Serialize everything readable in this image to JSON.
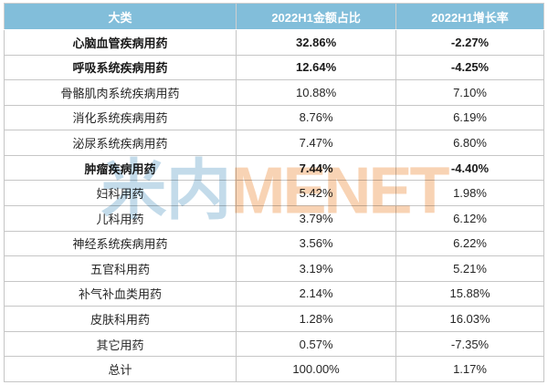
{
  "watermark": {
    "cn": "米内",
    "en": "MENET"
  },
  "table": {
    "columns": [
      "大类",
      "2022H1金额占比",
      "2022H1增长率"
    ],
    "rows": [
      {
        "category": "心脑血管疾病用药",
        "share": "32.86%",
        "growth": "-2.27%",
        "bold": true
      },
      {
        "category": "呼吸系统疾病用药",
        "share": "12.64%",
        "growth": "-4.25%",
        "bold": true
      },
      {
        "category": "骨骼肌肉系统疾病用药",
        "share": "10.88%",
        "growth": "7.10%",
        "bold": false
      },
      {
        "category": "消化系统疾病用药",
        "share": "8.76%",
        "growth": "6.19%",
        "bold": false
      },
      {
        "category": "泌尿系统疾病用药",
        "share": "7.47%",
        "growth": "6.80%",
        "bold": false
      },
      {
        "category": "肿瘤疾病用药",
        "share": "7.44%",
        "growth": "-4.40%",
        "bold": true
      },
      {
        "category": "妇科用药",
        "share": "5.42%",
        "growth": "1.98%",
        "bold": false
      },
      {
        "category": "儿科用药",
        "share": "3.79%",
        "growth": "6.12%",
        "bold": false
      },
      {
        "category": "神经系统疾病用药",
        "share": "3.56%",
        "growth": "6.22%",
        "bold": false
      },
      {
        "category": "五官科用药",
        "share": "3.19%",
        "growth": "5.21%",
        "bold": false
      },
      {
        "category": "补气补血类用药",
        "share": "2.14%",
        "growth": "15.88%",
        "bold": false
      },
      {
        "category": "皮肤科用药",
        "share": "1.28%",
        "growth": "16.03%",
        "bold": false
      },
      {
        "category": "其它用药",
        "share": "0.57%",
        "growth": "-7.35%",
        "bold": false
      },
      {
        "category": "总计",
        "share": "100.00%",
        "growth": "1.17%",
        "bold": false
      }
    ]
  },
  "colors": {
    "header_bg": "#82BEDA",
    "header_text": "#FFFFFF",
    "grid_line": "#C6C6C6",
    "outer_border": "#9E9E9E",
    "body_text": "#262626",
    "watermark_cn": "#C3DBEA",
    "watermark_en": "#F8D3B4"
  },
  "chart_data": {
    "type": "table",
    "title": "",
    "categories": [
      "心脑血管疾病用药",
      "呼吸系统疾病用药",
      "骨骼肌肉系统疾病用药",
      "消化系统疾病用药",
      "泌尿系统疾病用药",
      "肿瘤疾病用药",
      "妇科用药",
      "儿科用药",
      "神经系统疾病用药",
      "五官科用药",
      "补气补血类用药",
      "皮肤科用药",
      "其它用药",
      "总计"
    ],
    "series": [
      {
        "name": "2022H1金额占比",
        "unit": "%",
        "values": [
          32.86,
          12.64,
          10.88,
          8.76,
          7.47,
          7.44,
          5.42,
          3.79,
          3.56,
          3.19,
          2.14,
          1.28,
          0.57,
          100.0
        ]
      },
      {
        "name": "2022H1增长率",
        "unit": "%",
        "values": [
          -2.27,
          -4.25,
          7.1,
          6.19,
          6.8,
          -4.4,
          1.98,
          6.12,
          6.22,
          5.21,
          15.88,
          16.03,
          -7.35,
          1.17
        ]
      }
    ],
    "legend_position": "none",
    "grid": true
  }
}
